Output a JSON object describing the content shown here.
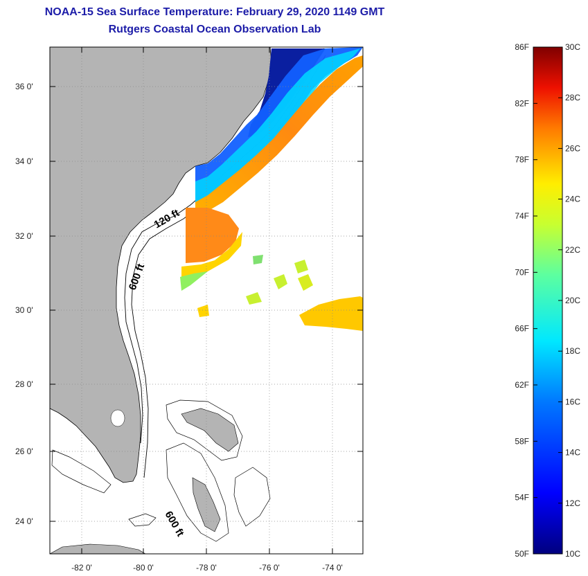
{
  "header": {
    "title": "NOAA-15 Sea Surface Temperature:  February 29, 2020 1149 GMT",
    "subtitle": "Rutgers Coastal Ocean Observation Lab"
  },
  "map": {
    "lat_range": [
      23,
      37
    ],
    "lon_range": [
      -83,
      -73
    ],
    "lat_ticks": [
      {
        "value": 36,
        "label": "36 0'"
      },
      {
        "value": 34,
        "label": "34 0'"
      },
      {
        "value": 32,
        "label": "32 0'"
      },
      {
        "value": 30,
        "label": "30 0'"
      },
      {
        "value": 28,
        "label": "28 0'"
      },
      {
        "value": 26,
        "label": "26 0'"
      },
      {
        "value": 24,
        "label": "24 0'"
      }
    ],
    "lon_ticks": [
      {
        "value": -82,
        "label": "-82 0'"
      },
      {
        "value": -80,
        "label": "-80 0'"
      },
      {
        "value": -78,
        "label": "-78 0'"
      },
      {
        "value": -76,
        "label": "-76 0'"
      },
      {
        "value": -74,
        "label": "-74 0'"
      }
    ],
    "contour_labels": {
      "c120": "120 ft",
      "c600": "600 ft",
      "c600b": "600 ft"
    },
    "land_color": "#b4b4b4",
    "grid": "dotted"
  },
  "colorbar": {
    "fahrenheit_labels": [
      "86F",
      "82F",
      "78F",
      "74F",
      "70F",
      "66F",
      "62F",
      "58F",
      "54F",
      "50F"
    ],
    "celsius_labels": [
      "30C",
      "28C",
      "26C",
      "24C",
      "22C",
      "20C",
      "18C",
      "16C",
      "14C",
      "12C",
      "10C"
    ],
    "range_f": [
      50,
      86
    ],
    "range_c": [
      10,
      30
    ]
  }
}
